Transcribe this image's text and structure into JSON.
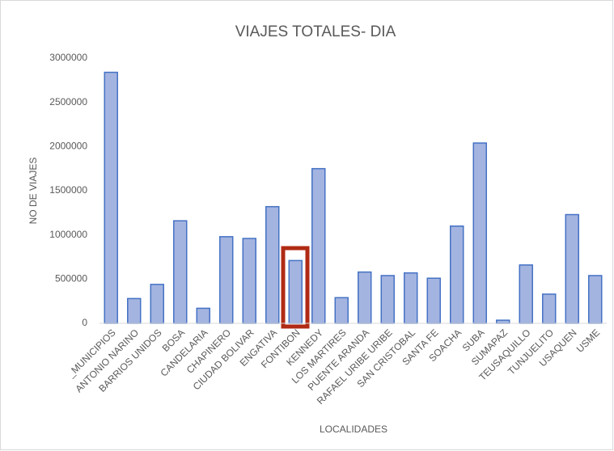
{
  "chart_data": {
    "type": "bar",
    "title": "VIAJES  TOTALES-  DIA",
    "x_label": "LOCALIDADES",
    "y_label": "NO DE VIAJES",
    "categories": [
      "_MUNICIPIOS",
      "ANTONIO NARINO",
      "BARRIOS UNIDOS",
      "BOSA",
      "CANDELARIA",
      "CHAPINERO",
      "CIUDAD BOLIVAR",
      "ENGATIVA",
      "FONTIBON",
      "KENNEDY",
      "LOS MARTIRES",
      "PUENTE ARANDA",
      "RAFAEL URIBE URIBE",
      "SAN CRISTOBAL",
      "SANTA FE",
      "SOACHA",
      "SUBA",
      "SUMAPAZ",
      "TEUSAQUILLO",
      "TUNJUELITO",
      "USAQUEN",
      "USME"
    ],
    "values": [
      2840000,
      280000,
      440000,
      1160000,
      170000,
      980000,
      960000,
      1320000,
      710000,
      1750000,
      290000,
      580000,
      540000,
      570000,
      510000,
      1100000,
      2040000,
      35000,
      660000,
      330000,
      1230000,
      540000
    ],
    "color": "#a4b4e0",
    "edge_color": "#4472c4",
    "ylim": [
      0,
      3000000
    ],
    "yticks": [
      0,
      500000,
      1000000,
      1500000,
      2000000,
      2500000,
      3000000
    ],
    "grid": false
  }
}
